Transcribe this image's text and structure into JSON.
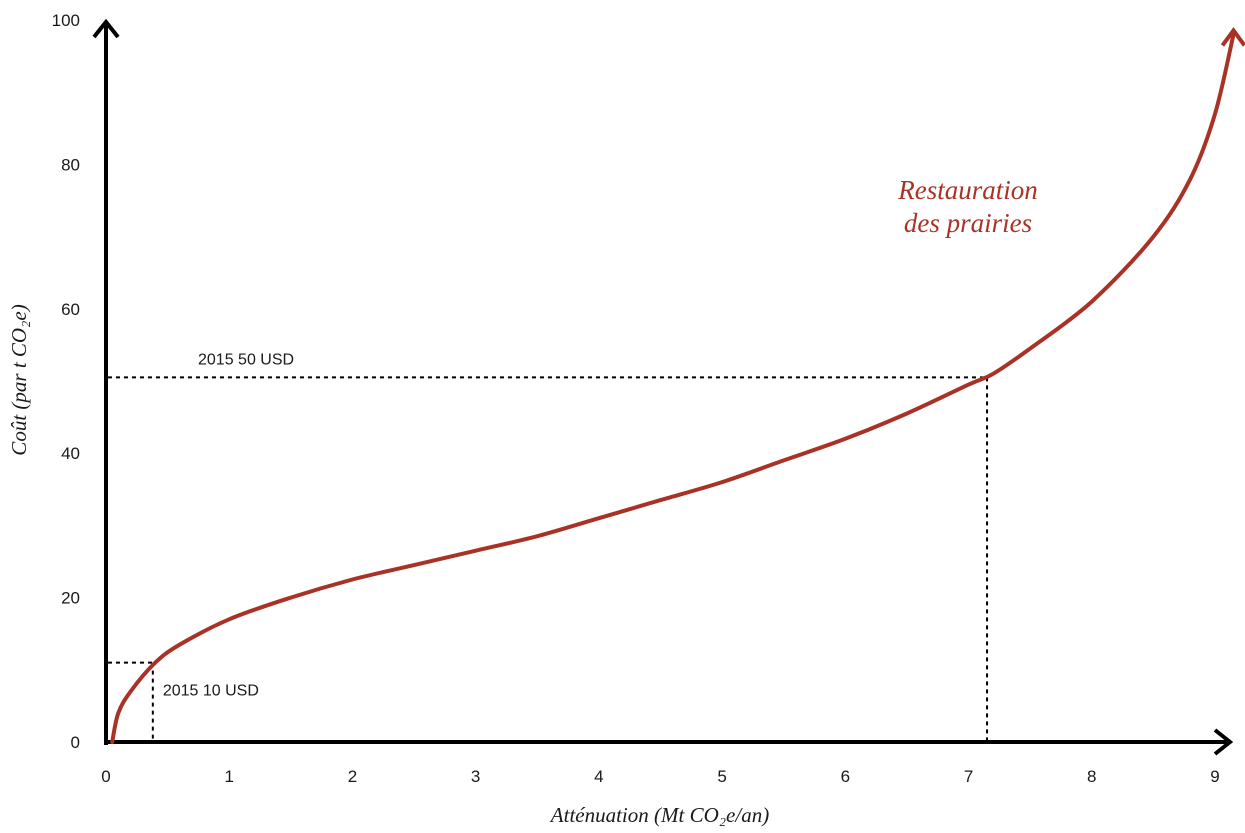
{
  "chart_data": {
    "type": "line",
    "xlabel": "Atténuation (Mt CO₂e/an)",
    "ylabel": "Coût (par t CO₂e)",
    "xlim": [
      0,
      9
    ],
    "ylim": [
      0,
      100
    ],
    "x_ticks": [
      "0",
      "1",
      "2",
      "3",
      "4",
      "5",
      "6",
      "7",
      "8",
      "9"
    ],
    "y_ticks": [
      "0",
      "20",
      "40",
      "60",
      "80",
      "100"
    ],
    "grid": false,
    "series": [
      {
        "name": "Restauration des prairies",
        "color": "#a93226",
        "x": [
          0.05,
          0.1,
          0.2,
          0.4,
          0.6,
          1.0,
          1.5,
          2.0,
          2.5,
          3.0,
          3.5,
          4.0,
          4.5,
          5.0,
          5.5,
          6.0,
          6.5,
          7.0,
          7.2,
          7.5,
          8.0,
          8.5,
          8.8,
          9.0,
          9.15
        ],
        "y": [
          0,
          4,
          7,
          11,
          13.5,
          17,
          20,
          22.5,
          24.5,
          26.5,
          28.5,
          31,
          33.5,
          36,
          39,
          42,
          45.5,
          49.5,
          51,
          54.5,
          61,
          70,
          78,
          87,
          98
        ]
      }
    ],
    "annotations": [
      {
        "text": "2015 10 USD",
        "x": 0.38,
        "y": 11
      },
      {
        "text": "2015 50 USD",
        "x": 7.15,
        "y": 50.5
      }
    ]
  }
}
